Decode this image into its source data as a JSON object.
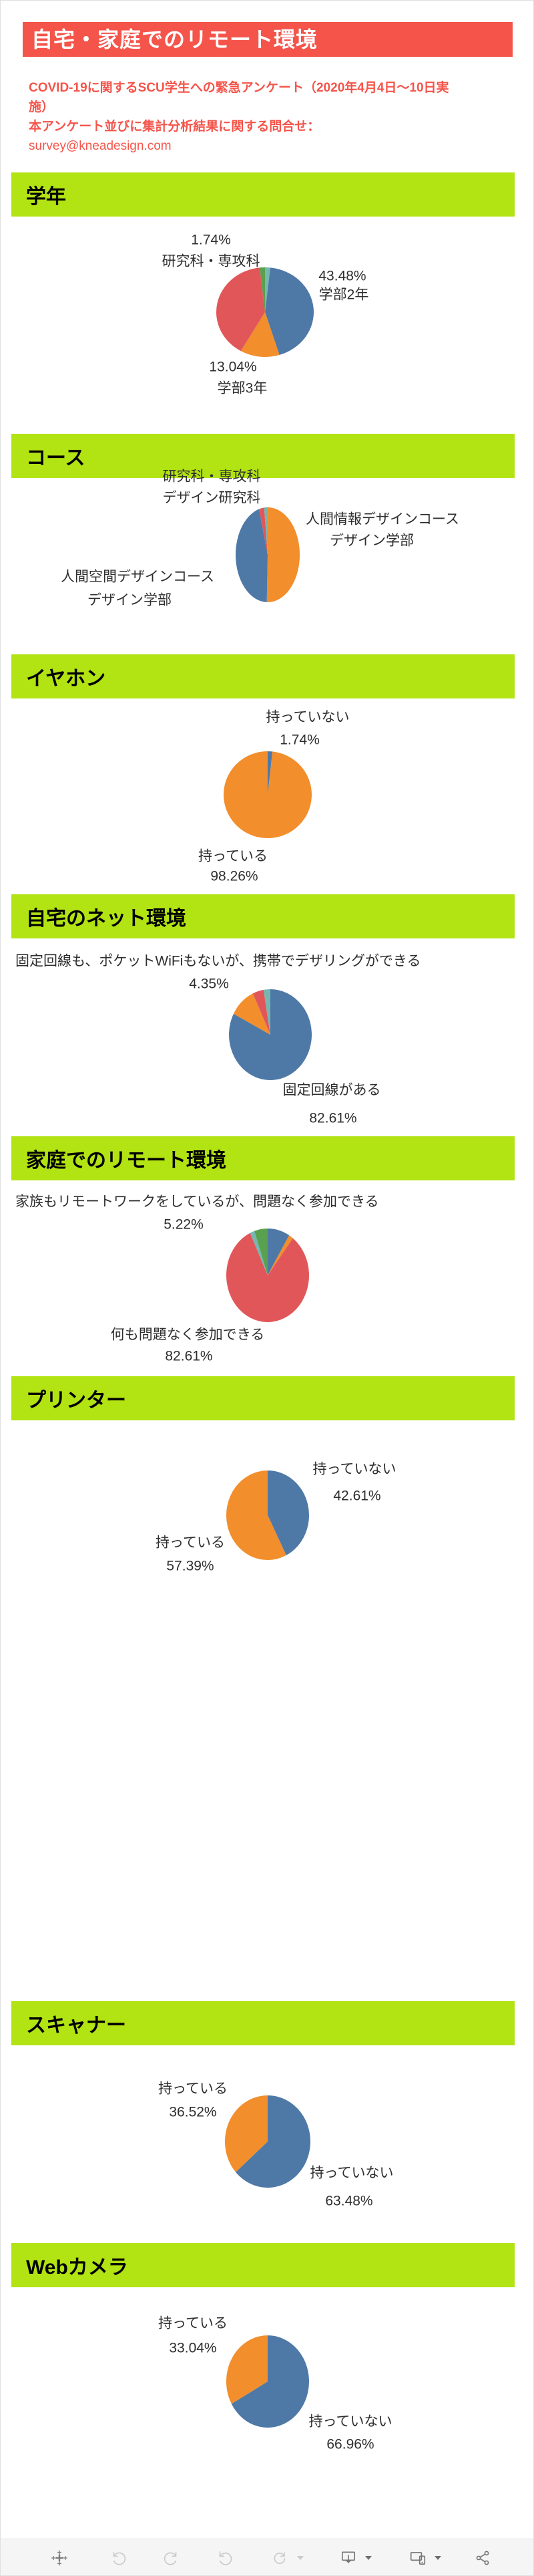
{
  "page": {
    "title_bar": "自宅・家庭でのリモート環境",
    "subtitle_line1": "COVID-19に関するSCU学生への緊急アンケート（2020年4月4日～10日実施）",
    "subtitle_line2": "本アンケート並びに集計分析結果に関する問合せ：",
    "subtitle_line3": "survey@kneadesign.com"
  },
  "colors": {
    "accent_red": "#f4544a",
    "header_green": "#b2e312",
    "slice_blue": "#4e79a7",
    "slice_orange": "#f28e2b",
    "slice_red": "#e15759",
    "slice_teal": "#76b7b2",
    "slice_green": "#59a14f",
    "label_text": "#2e2e2e"
  },
  "sections": [
    {
      "id": "grade",
      "header": "学年",
      "chart_data": {
        "type": "pie",
        "title": "学年",
        "slices": [
          {
            "label": "",
            "value": 1.74,
            "color": "#76b7b2"
          },
          {
            "label": "学部2年",
            "value": 43.48,
            "color": "#4e79a7"
          },
          {
            "label": "学部3年",
            "value": 13.04,
            "color": "#f28e2b"
          },
          {
            "label": "",
            "value": 40.0,
            "color": "#e15759"
          },
          {
            "label": "研究科・専攻科",
            "value": 1.74,
            "color": "#59a14f"
          }
        ]
      },
      "labels": [
        "1.74%",
        "研究科・専攻科",
        "43.48%",
        "学部2年",
        "13.04%",
        "学部3年"
      ]
    },
    {
      "id": "course",
      "header": "コース",
      "chart_data": {
        "type": "pie",
        "title": "コース",
        "slices": [
          {
            "label": "人間情報デザインコース デザイン学部",
            "value": 50.43,
            "color": "#f28e2b"
          },
          {
            "label": "人間空間デザインコース デザイン学部",
            "value": 45.22,
            "color": "#4e79a7"
          },
          {
            "label": "デザイン研究科",
            "value": 2.61,
            "color": "#e15759"
          },
          {
            "label": "研究科・専攻科",
            "value": 1.74,
            "color": "#76b7b2"
          }
        ]
      },
      "labels": [
        "研究科・専攻科",
        "デザイン研究科",
        "人間情報デザインコース",
        "デザイン学部",
        "人間空間デザインコース",
        "デザイン学部"
      ]
    },
    {
      "id": "earphones",
      "header": "イヤホン",
      "chart_data": {
        "type": "pie",
        "title": "イヤホン",
        "slices": [
          {
            "label": "持っていない",
            "value": 1.74,
            "color": "#4e79a7"
          },
          {
            "label": "持っている",
            "value": 98.26,
            "color": "#f28e2b"
          }
        ]
      },
      "labels": [
        "持っていない",
        "1.74%",
        "持っている",
        "98.26%"
      ]
    },
    {
      "id": "home-internet",
      "header": "自宅のネット環境",
      "chart_data": {
        "type": "pie",
        "title": "自宅のネット環境",
        "slices": [
          {
            "label": "固定回線がある",
            "value": 82.61,
            "color": "#4e79a7"
          },
          {
            "label": "",
            "value": 10.43,
            "color": "#f28e2b"
          },
          {
            "label": "固定回線も、ポケットWiFiもないが、携帯でデザリングができる",
            "value": 4.35,
            "color": "#e15759"
          },
          {
            "label": "",
            "value": 2.61,
            "color": "#76b7b2"
          }
        ]
      },
      "labels": [
        "固定回線も、ポケットWiFiもないが、携帯でデザリングができる",
        "4.35%",
        "固定回線がある",
        "82.61%"
      ]
    },
    {
      "id": "home-remote",
      "header": "家庭でのリモート環境",
      "chart_data": {
        "type": "pie",
        "title": "家庭でのリモート環境",
        "slices": [
          {
            "label": "",
            "value": 8.69,
            "color": "#4e79a7"
          },
          {
            "label": "",
            "value": 1.74,
            "color": "#f28e2b"
          },
          {
            "label": "何も問題なく参加できる",
            "value": 82.61,
            "color": "#e15759"
          },
          {
            "label": "",
            "value": 1.74,
            "color": "#76b7b2"
          },
          {
            "label": "家族もリモートワークをしているが、問題なく参加できる",
            "value": 5.22,
            "color": "#59a14f"
          }
        ]
      },
      "labels": [
        "家族もリモートワークをしているが、問題なく参加できる",
        "5.22%",
        "何も問題なく参加できる",
        "82.61%"
      ]
    },
    {
      "id": "printer",
      "header": "プリンター",
      "chart_data": {
        "type": "pie",
        "title": "プリンター",
        "slices": [
          {
            "label": "持っていない",
            "value": 42.61,
            "color": "#4e79a7"
          },
          {
            "label": "持っている",
            "value": 57.39,
            "color": "#f28e2b"
          }
        ]
      },
      "labels": [
        "持っていない",
        "42.61%",
        "持っている",
        "57.39%"
      ]
    },
    {
      "id": "scanner",
      "header": "スキャナー",
      "chart_data": {
        "type": "pie",
        "title": "スキャナー",
        "slices": [
          {
            "label": "持っていない",
            "value": 63.48,
            "color": "#4e79a7"
          },
          {
            "label": "持っている",
            "value": 36.52,
            "color": "#f28e2b"
          }
        ]
      },
      "labels": [
        "持っている",
        "36.52%",
        "持っていない",
        "63.48%"
      ]
    },
    {
      "id": "webcam",
      "header": "Webカメラ",
      "chart_data": {
        "type": "pie",
        "title": "Webカメラ",
        "slices": [
          {
            "label": "持っていない",
            "value": 66.96,
            "color": "#4e79a7"
          },
          {
            "label": "持っている",
            "value": 33.04,
            "color": "#f28e2b"
          }
        ]
      },
      "labels": [
        "持っている",
        "33.04%",
        "持っていない",
        "66.96%"
      ]
    }
  ],
  "toolbar": {
    "icons": [
      "tableau-logo",
      "undo",
      "redo",
      "revert",
      "refresh",
      "download",
      "device-layouts",
      "share"
    ]
  }
}
